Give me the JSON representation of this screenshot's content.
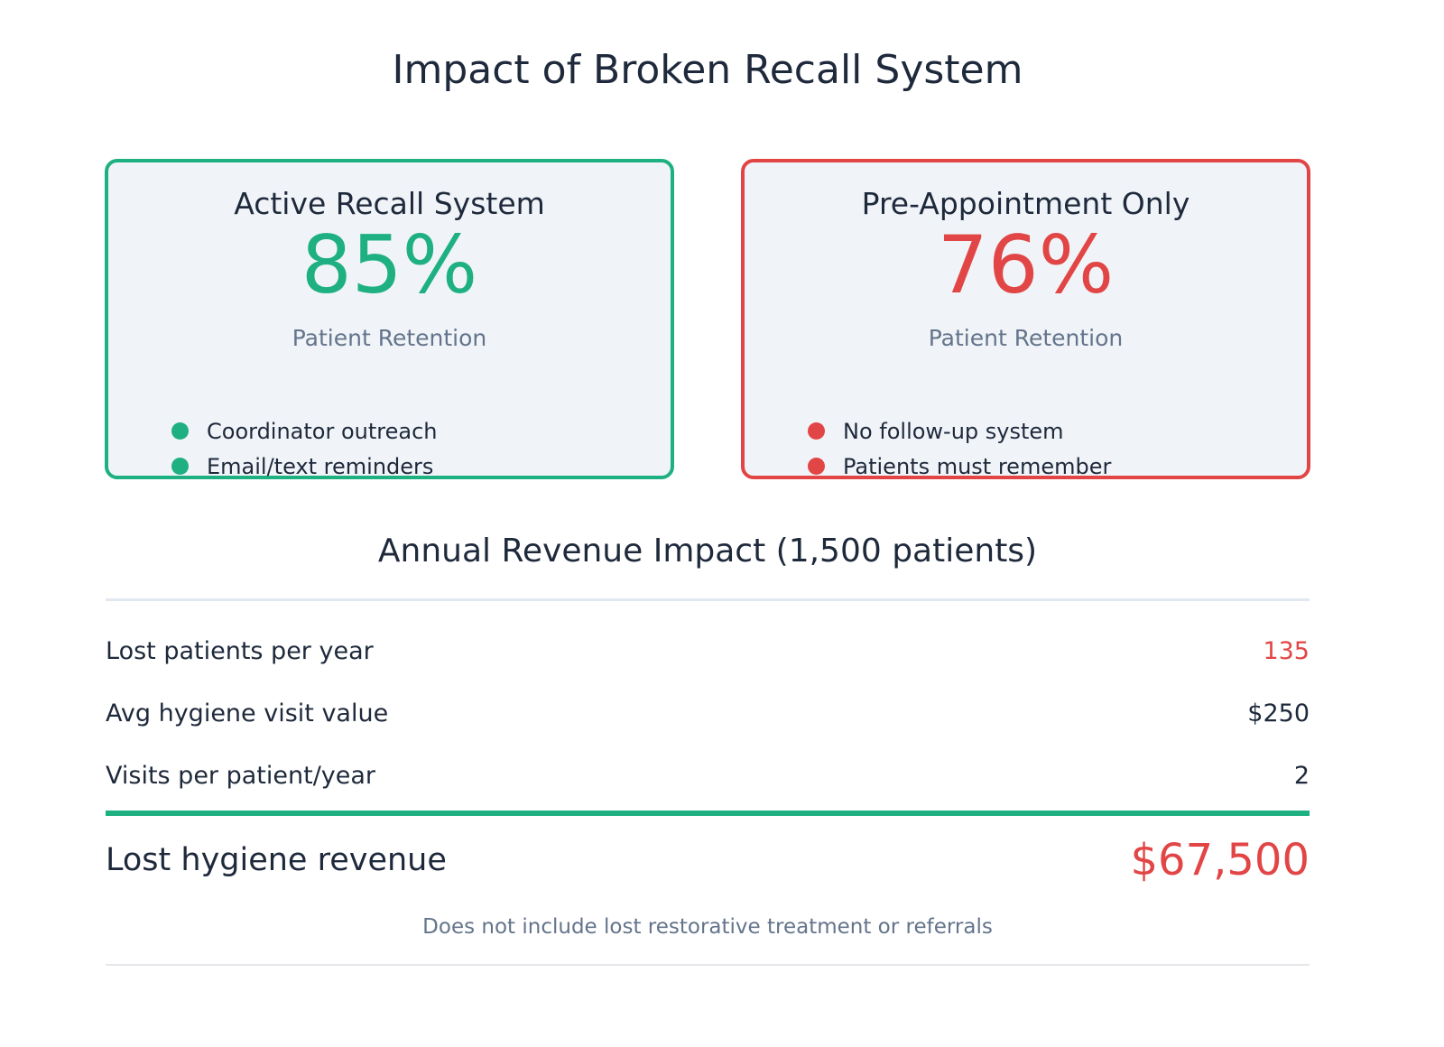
{
  "title": "Impact of Broken Recall System",
  "cards": [
    {
      "title": "Active Recall System",
      "value": "85%",
      "subtitle": "Patient Retention",
      "bullets": [
        "Coordinator outreach",
        "Email/text reminders"
      ],
      "color": "#1eb080"
    },
    {
      "title": "Pre-Appointment Only",
      "value": "76%",
      "subtitle": "Patient Retention",
      "bullets": [
        "No follow-up system",
        "Patients must remember"
      ],
      "color": "#e24545"
    }
  ],
  "revenue": {
    "title": "Annual Revenue Impact (1,500 patients)",
    "rows": [
      {
        "label": "Lost patients per year",
        "value": "135",
        "color": "#e24545"
      },
      {
        "label": "Avg hygiene visit value",
        "value": "$250"
      },
      {
        "label": "Visits per patient/year",
        "value": "2"
      }
    ],
    "total": {
      "label": "Lost hygiene revenue",
      "value": "$67,500"
    },
    "note": "Does not include lost restorative treatment or referrals"
  }
}
